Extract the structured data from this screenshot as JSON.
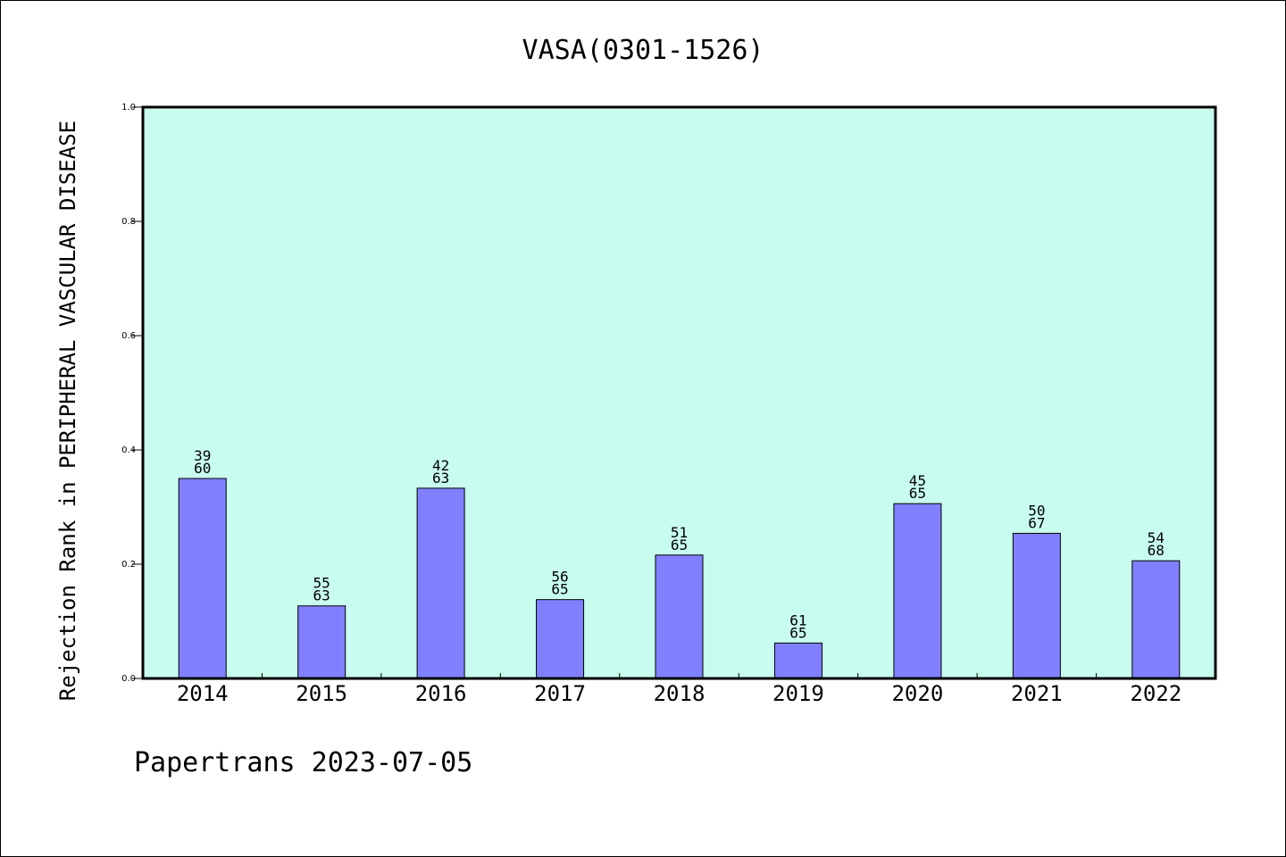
{
  "chart_data": {
    "type": "bar",
    "title": "VASA(0301-1526)",
    "ylabel": "Rejection Rank in PERIPHERAL VASCULAR DISEASE",
    "xlabel": "",
    "ylim": [
      0,
      1.0
    ],
    "yticks": [
      "0.0",
      "0.2",
      "0.4",
      "0.6",
      "0.8",
      "1.0"
    ],
    "categories": [
      "2014",
      "2015",
      "2016",
      "2017",
      "2018",
      "2019",
      "2020",
      "2021",
      "2022"
    ],
    "values": [
      0.35,
      0.127,
      0.333,
      0.138,
      0.216,
      0.062,
      0.306,
      0.254,
      0.206
    ],
    "labels": [
      [
        "39",
        "60"
      ],
      [
        "55",
        "63"
      ],
      [
        "42",
        "63"
      ],
      [
        "56",
        "65"
      ],
      [
        "51",
        "65"
      ],
      [
        "61",
        "65"
      ],
      [
        "45",
        "65"
      ],
      [
        "50",
        "67"
      ],
      [
        "54",
        "68"
      ]
    ],
    "grid": false,
    "colors": {
      "plot_background": "#c8fcee",
      "bar_fill": "#8080ff",
      "bar_stroke": "#000000",
      "axis": "#000000"
    }
  },
  "footer": "Papertrans 2023-07-05"
}
